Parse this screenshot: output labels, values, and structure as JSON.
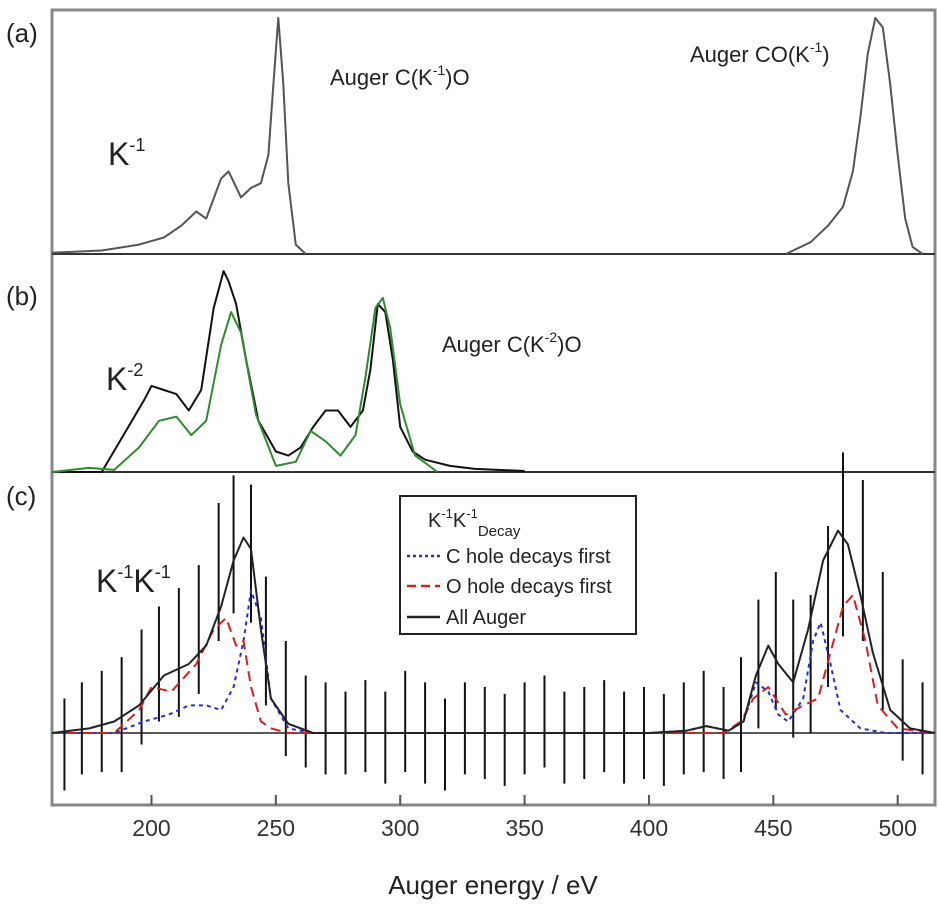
{
  "figure": {
    "xlabel": "Auger energy / eV",
    "xlim": [
      160,
      515
    ],
    "x_ticks": [
      "200",
      "250",
      "300",
      "350",
      "400",
      "450",
      "500"
    ]
  },
  "panels": {
    "a": {
      "label": "(a)",
      "annotation_left": "Auger C(K",
      "annotation_left_sup": "-1",
      "annotation_left_end": ")O",
      "annotation_right": "Auger CO(K",
      "annotation_right_sup": "-1",
      "annotation_right_end": ")",
      "series_label": "K",
      "series_label_sup": "-1"
    },
    "b": {
      "label": "(b)",
      "annotation": "Auger C(K",
      "annotation_sup": "-2",
      "annotation_end": ")O",
      "series_label": "K",
      "series_label_sup": "-2"
    },
    "c": {
      "label": "(c)",
      "series_label_1": "K",
      "series_label_sup_1": "-1",
      "series_label_2": "K",
      "series_label_sup_2": "-1"
    }
  },
  "legend": {
    "title_k1": "K",
    "title_sup1": "-1",
    "title_k2": "K",
    "title_sup2": "-1",
    "title_sub": "Decay",
    "items": [
      {
        "label": "C hole decays first",
        "color": "#2b2bd6",
        "style": "dotted"
      },
      {
        "label": "O hole decays first",
        "color": "#d62020",
        "style": "dashed"
      },
      {
        "label": "All  Auger",
        "color": "#222222",
        "style": "solid"
      }
    ]
  },
  "chart_data": [
    {
      "type": "line",
      "panel": "a",
      "xlim": [
        160,
        515
      ],
      "series": [
        {
          "name": "K-1",
          "color": "#555555",
          "x": [
            160,
            180,
            195,
            205,
            212,
            218,
            222,
            228,
            231,
            236,
            240,
            244,
            247,
            249,
            251,
            253,
            255,
            258,
            262
          ],
          "y": [
            0.005,
            0.015,
            0.04,
            0.07,
            0.12,
            0.18,
            0.15,
            0.32,
            0.35,
            0.24,
            0.28,
            0.3,
            0.42,
            0.72,
            1.0,
            0.72,
            0.3,
            0.04,
            0.0
          ]
        },
        {
          "name": "CO(K-1)",
          "color": "#555555",
          "x": [
            455,
            465,
            472,
            478,
            482,
            485,
            488,
            491,
            494,
            497,
            500,
            503,
            506,
            510
          ],
          "y": [
            0.0,
            0.05,
            0.12,
            0.2,
            0.35,
            0.58,
            0.85,
            1.0,
            0.96,
            0.72,
            0.42,
            0.15,
            0.03,
            0.0
          ]
        }
      ]
    },
    {
      "type": "line",
      "panel": "b",
      "xlim": [
        160,
        515
      ],
      "series": [
        {
          "name": "K-2 data",
          "color": "#111111",
          "x": [
            163,
            180,
            197,
            200,
            205,
            210,
            215,
            220,
            225,
            229,
            231,
            234,
            238,
            243,
            250,
            255,
            260,
            265,
            270,
            275,
            280,
            285,
            288,
            291,
            294,
            297,
            300,
            305,
            310,
            320,
            330,
            350
          ],
          "y": [
            0.0,
            0.0,
            0.35,
            0.42,
            0.4,
            0.38,
            0.3,
            0.4,
            0.8,
            0.98,
            0.93,
            0.82,
            0.55,
            0.25,
            0.1,
            0.08,
            0.12,
            0.22,
            0.3,
            0.3,
            0.22,
            0.3,
            0.5,
            0.82,
            0.78,
            0.55,
            0.22,
            0.1,
            0.06,
            0.03,
            0.015,
            0.005
          ]
        },
        {
          "name": "K-2 fit",
          "color": "#2e8b2e",
          "x": [
            160,
            175,
            185,
            195,
            203,
            210,
            216,
            222,
            228,
            232,
            236,
            242,
            250,
            258,
            264,
            270,
            276,
            282,
            286,
            290,
            293,
            296,
            300,
            306,
            315
          ],
          "y": [
            0.0,
            0.02,
            0.01,
            0.12,
            0.25,
            0.27,
            0.18,
            0.25,
            0.62,
            0.78,
            0.68,
            0.28,
            0.03,
            0.05,
            0.2,
            0.15,
            0.08,
            0.18,
            0.46,
            0.8,
            0.85,
            0.7,
            0.33,
            0.08,
            0.0
          ]
        }
      ]
    },
    {
      "type": "line",
      "panel": "c",
      "xlim": [
        160,
        515
      ],
      "ylim": [
        -0.35,
        1.1
      ],
      "series": [
        {
          "name": "C hole decays first",
          "color": "#2b2bd6",
          "x": [
            160,
            185,
            197,
            207,
            215,
            222,
            228,
            233,
            237,
            240,
            244,
            248,
            255,
            265,
            400,
            415,
            423,
            432,
            438,
            443,
            448,
            452,
            456,
            462,
            466,
            469,
            473,
            477,
            485,
            495,
            515
          ],
          "y": [
            0.0,
            0.0,
            0.05,
            0.08,
            0.12,
            0.12,
            0.1,
            0.2,
            0.4,
            0.62,
            0.5,
            0.15,
            0.02,
            0.0,
            0.0,
            0.01,
            0.03,
            0.01,
            0.05,
            0.22,
            0.18,
            0.08,
            0.05,
            0.15,
            0.4,
            0.48,
            0.3,
            0.1,
            0.02,
            0.0,
            0.0
          ]
        },
        {
          "name": "O hole decays first",
          "color": "#d62020",
          "x": [
            160,
            185,
            195,
            200,
            208,
            218,
            225,
            230,
            234,
            237,
            240,
            244,
            248,
            255,
            265,
            400,
            420,
            430,
            437,
            442,
            448,
            455,
            462,
            468,
            473,
            478,
            482,
            487,
            492,
            500,
            515
          ],
          "y": [
            0.0,
            0.0,
            0.1,
            0.2,
            0.18,
            0.3,
            0.45,
            0.5,
            0.38,
            0.4,
            0.2,
            0.05,
            0.02,
            0.0,
            0.0,
            0.0,
            0.0,
            0.0,
            0.05,
            0.15,
            0.2,
            0.08,
            0.12,
            0.15,
            0.35,
            0.55,
            0.6,
            0.4,
            0.12,
            0.02,
            0.0
          ]
        },
        {
          "name": "All  Auger",
          "color": "#222222",
          "x": [
            160,
            175,
            185,
            195,
            205,
            215,
            222,
            228,
            233,
            237,
            240,
            244,
            248,
            255,
            265,
            400,
            415,
            423,
            432,
            438,
            443,
            448,
            452,
            458,
            464,
            470,
            476,
            480,
            485,
            490,
            497,
            505,
            515
          ],
          "y": [
            0.0,
            0.02,
            0.05,
            0.12,
            0.25,
            0.3,
            0.38,
            0.55,
            0.75,
            0.85,
            0.8,
            0.45,
            0.15,
            0.04,
            0.0,
            0.0,
            0.01,
            0.03,
            0.01,
            0.05,
            0.25,
            0.38,
            0.3,
            0.22,
            0.45,
            0.75,
            0.88,
            0.82,
            0.6,
            0.35,
            0.1,
            0.02,
            0.0
          ]
        }
      ],
      "errorbars": {
        "x": [
          165,
          172,
          180,
          188,
          196,
          203,
          211,
          219,
          227,
          233,
          240,
          246,
          254,
          262,
          270,
          278,
          286,
          294,
          302,
          310,
          318,
          326,
          334,
          342,
          350,
          358,
          366,
          374,
          382,
          390,
          398,
          406,
          414,
          422,
          430,
          437,
          444,
          451,
          458,
          465,
          472,
          478,
          486,
          494,
          502,
          510
        ],
        "y": [
          -0.05,
          0.02,
          0.05,
          0.08,
          0.2,
          0.3,
          0.35,
          0.45,
          0.7,
          0.82,
          0.78,
          0.4,
          0.15,
          0.05,
          0.02,
          0.0,
          0.03,
          -0.02,
          0.05,
          0.0,
          -0.05,
          0.02,
          0.0,
          -0.03,
          0.02,
          0.05,
          -0.02,
          0.0,
          0.03,
          -0.02,
          0.0,
          -0.03,
          0.02,
          0.05,
          0.0,
          0.08,
          0.3,
          0.4,
          0.28,
          0.3,
          0.55,
          0.82,
          0.75,
          0.4,
          0.1,
          0.02
        ],
        "err": [
          0.2,
          0.2,
          0.22,
          0.25,
          0.25,
          0.25,
          0.28,
          0.28,
          0.3,
          0.3,
          0.3,
          0.28,
          0.25,
          0.2,
          0.2,
          0.18,
          0.2,
          0.2,
          0.22,
          0.22,
          0.2,
          0.2,
          0.2,
          0.2,
          0.2,
          0.2,
          0.2,
          0.2,
          0.2,
          0.2,
          0.2,
          0.2,
          0.2,
          0.22,
          0.2,
          0.25,
          0.28,
          0.3,
          0.3,
          0.3,
          0.35,
          0.4,
          0.35,
          0.3,
          0.22,
          0.2
        ]
      }
    }
  ]
}
